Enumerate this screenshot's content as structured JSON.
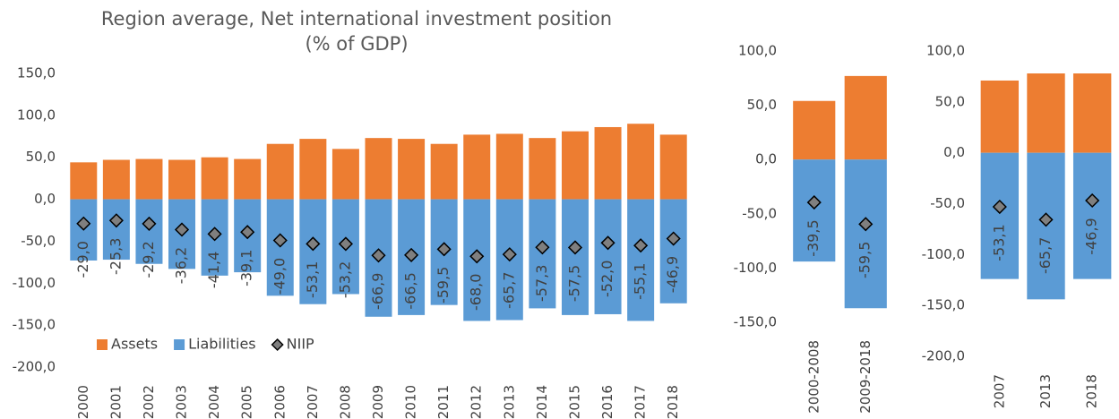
{
  "chart_data": [
    {
      "type": "bar",
      "title": [
        "Region average, Net international investment position",
        "(% of GDP)"
      ],
      "categories": [
        "2000",
        "2001",
        "2002",
        "2003",
        "2004",
        "2005",
        "2006",
        "2007",
        "2008",
        "2009",
        "2010",
        "2011",
        "2012",
        "2013",
        "2014",
        "2015",
        "2016",
        "2017",
        "2018"
      ],
      "series": [
        {
          "name": "Assets",
          "color": "#ed7d31",
          "values": [
            44,
            47,
            48,
            47,
            50,
            48,
            66,
            72,
            60,
            73,
            72,
            66,
            77,
            78,
            73,
            81,
            86,
            90,
            77
          ]
        },
        {
          "name": "Liabilities",
          "color": "#5b9bd5",
          "values": [
            -73,
            -72,
            -77,
            -83,
            -91,
            -87,
            -115,
            -125,
            -113,
            -140,
            -138,
            -126,
            -145,
            -144,
            -130,
            -138,
            -137,
            -145,
            -124
          ]
        },
        {
          "name": "NIIP",
          "color": "#7f7f7f",
          "marker": "diamond",
          "values": [
            -29.0,
            -25.3,
            -29.2,
            -36.2,
            -41.4,
            -39.1,
            -49.0,
            -53.1,
            -53.2,
            -66.9,
            -66.5,
            -59.5,
            -68.0,
            -65.7,
            -57.3,
            -57.5,
            -52.0,
            -55.1,
            -46.9
          ],
          "value_labels": [
            "-29,0",
            "-25,3",
            "-29,2",
            "-36,2",
            "-41,4",
            "-39,1",
            "-49,0",
            "-53,1",
            "-53,2",
            "-66,9",
            "-66,5",
            "-59,5",
            "-68,0",
            "-65,7",
            "-57,3",
            "-57,5",
            "-52,0",
            "-55,1",
            "-46,9"
          ]
        }
      ],
      "ylim": [
        -200,
        150
      ],
      "yticks": [
        {
          "value": -200,
          "label": "-200,0"
        },
        {
          "value": -150,
          "label": "-150,0"
        },
        {
          "value": -100,
          "label": "-100,0"
        },
        {
          "value": -50,
          "label": "-50,0"
        },
        {
          "value": 0,
          "label": "0,0"
        },
        {
          "value": 50,
          "label": "50,0"
        },
        {
          "value": 100,
          "label": "100,0"
        },
        {
          "value": 150,
          "label": "150,0"
        }
      ],
      "legend": true
    },
    {
      "type": "bar",
      "categories": [
        "2000-2008",
        "2009-2018"
      ],
      "series": [
        {
          "name": "Assets",
          "color": "#ed7d31",
          "values": [
            54,
            77
          ]
        },
        {
          "name": "Liabilities",
          "color": "#5b9bd5",
          "values": [
            -94,
            -137
          ]
        },
        {
          "name": "NIIP",
          "color": "#7f7f7f",
          "marker": "diamond",
          "values": [
            -39.5,
            -59.5
          ],
          "value_labels": [
            "-39,5",
            "-59,5"
          ]
        }
      ],
      "ylim": [
        -150,
        100
      ],
      "yticks": [
        {
          "value": -150,
          "label": "-150,0"
        },
        {
          "value": -100,
          "label": "-100,0"
        },
        {
          "value": -50,
          "label": "-50,0"
        },
        {
          "value": 0,
          "label": "0,0"
        },
        {
          "value": 50,
          "label": "50,0"
        },
        {
          "value": 100,
          "label": "100,0"
        }
      ],
      "legend": false
    },
    {
      "type": "bar",
      "categories": [
        "2007",
        "2013",
        "2018"
      ],
      "series": [
        {
          "name": "Assets",
          "color": "#ed7d31",
          "values": [
            71,
            78,
            78
          ]
        },
        {
          "name": "Liabilities",
          "color": "#5b9bd5",
          "values": [
            -124,
            -144,
            -124
          ]
        },
        {
          "name": "NIIP",
          "color": "#7f7f7f",
          "marker": "diamond",
          "values": [
            -53.1,
            -65.7,
            -46.9
          ],
          "value_labels": [
            "-53,1",
            "-65,7",
            "-46,9"
          ]
        }
      ],
      "ylim": [
        -200,
        100
      ],
      "yticks": [
        {
          "value": -200,
          "label": "-200,0"
        },
        {
          "value": -150,
          "label": "-150,0"
        },
        {
          "value": -100,
          "label": "-100,0"
        },
        {
          "value": -50,
          "label": "-50,0"
        },
        {
          "value": 0,
          "label": "0,0"
        },
        {
          "value": 50,
          "label": "50,0"
        },
        {
          "value": 100,
          "label": "100,0"
        }
      ],
      "legend": false
    }
  ]
}
